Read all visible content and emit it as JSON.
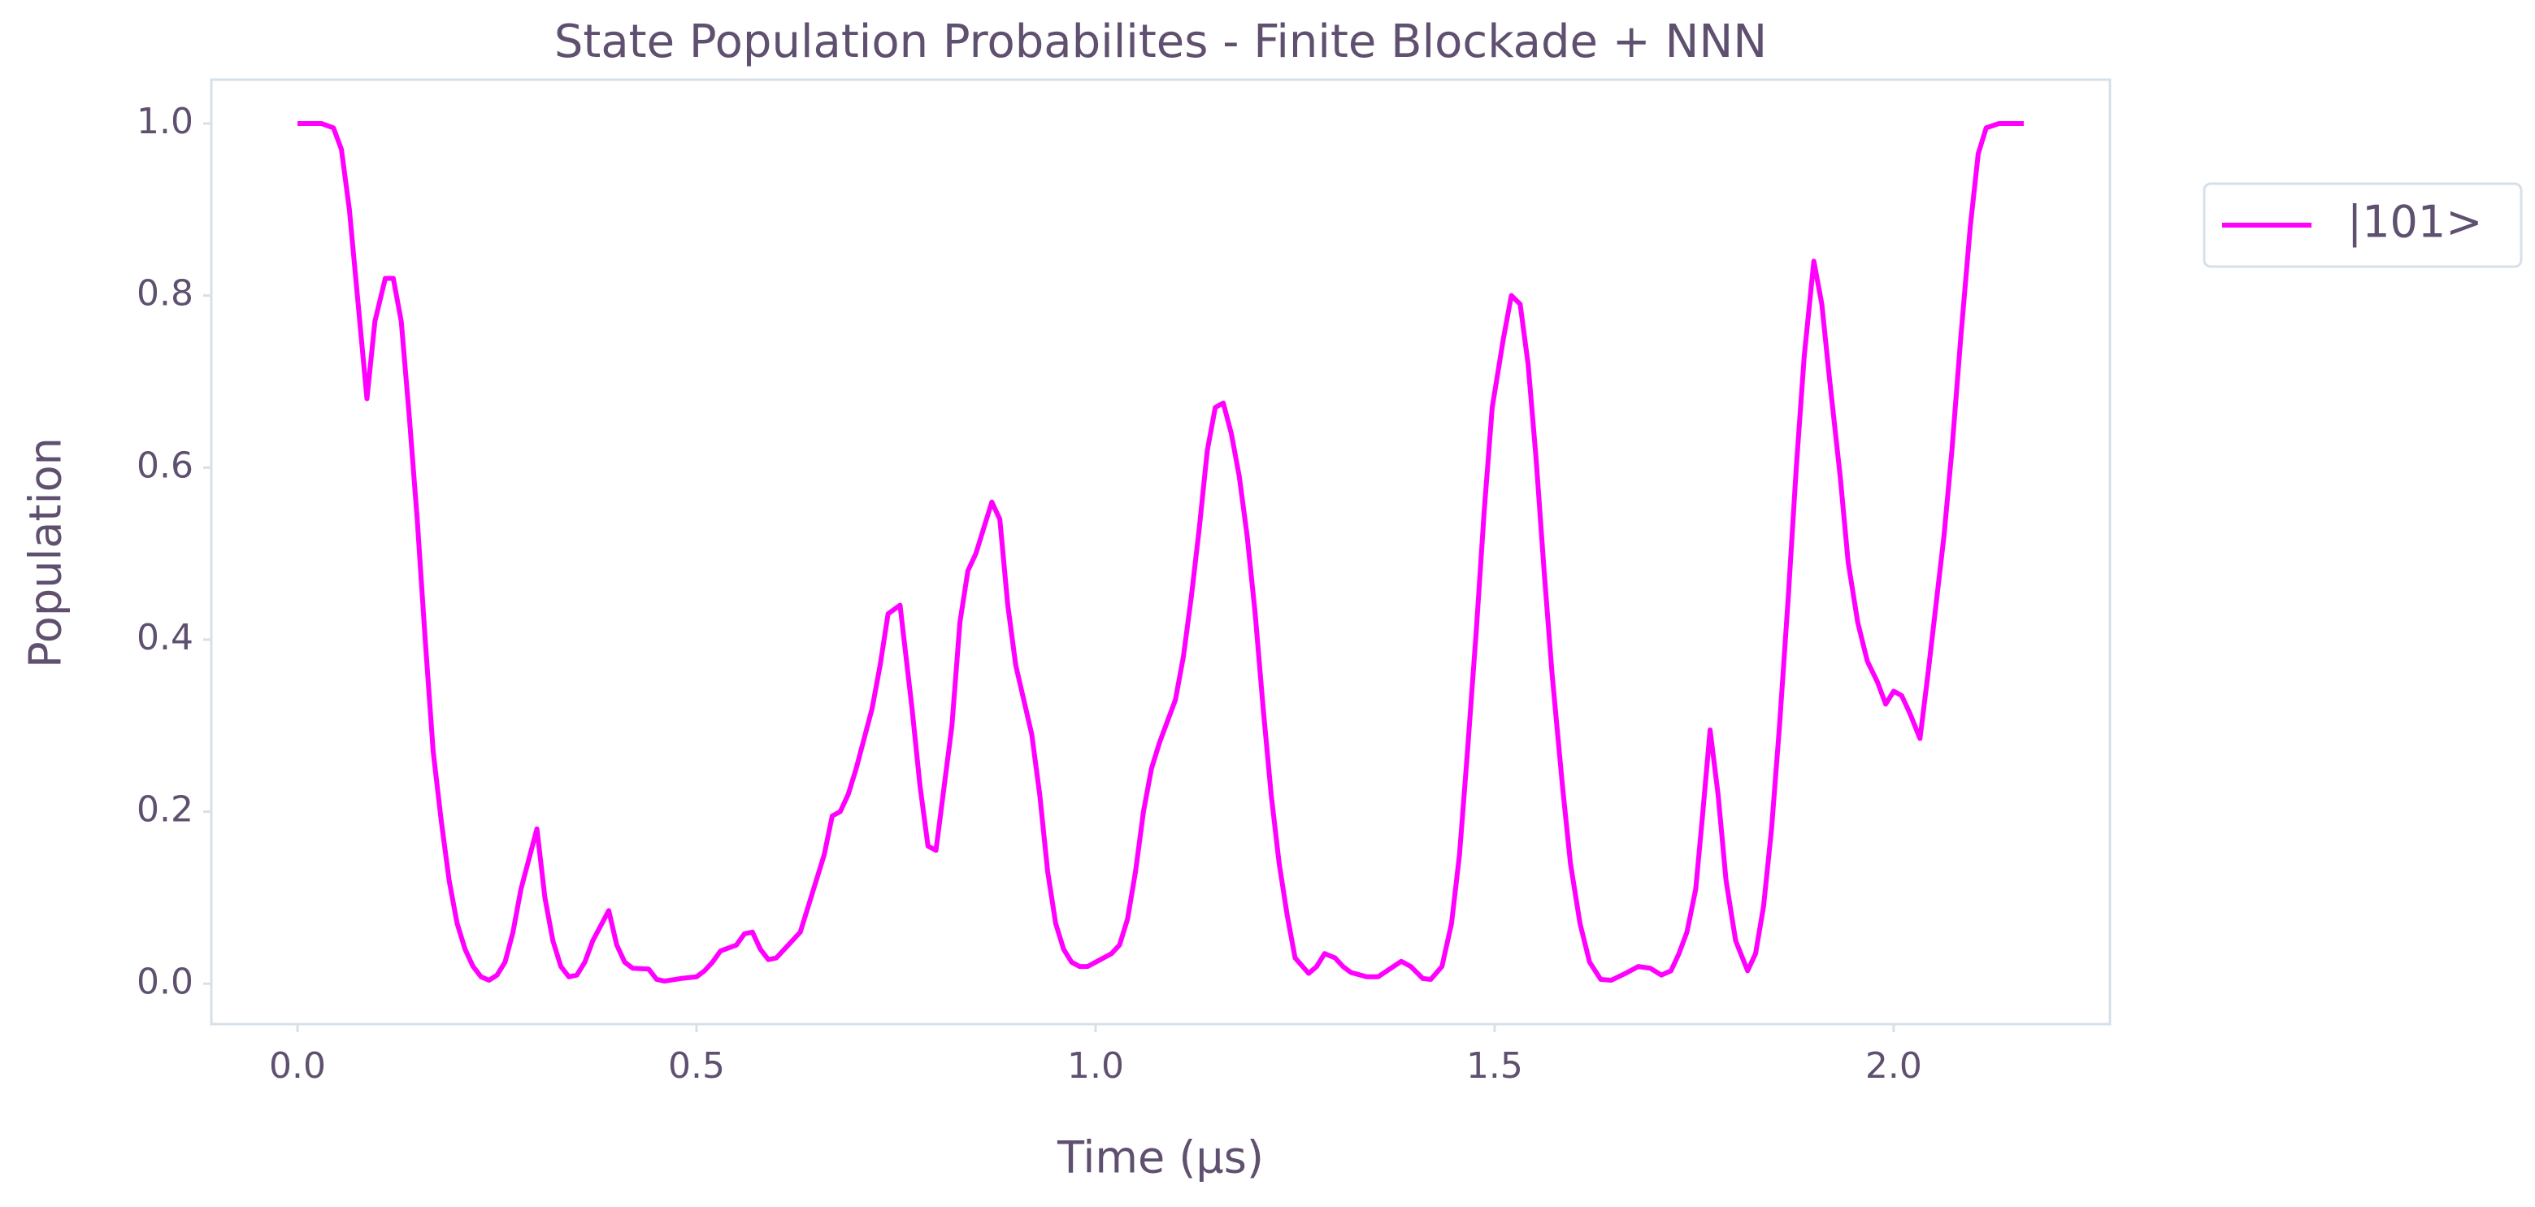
{
  "chart_data": {
    "type": "line",
    "title": "State Population Probabilites - Finite Blockade + NNN",
    "x_label": "Time (μs)",
    "y_label": "Population",
    "xlim": [
      -0.108,
      2.271
    ],
    "ylim": [
      -0.047,
      1.051
    ],
    "xticks": [
      {
        "value": 0,
        "label": "0.0"
      },
      {
        "value": 0.5,
        "label": "0.5"
      },
      {
        "value": 1,
        "label": "1.0"
      },
      {
        "value": 1.5,
        "label": "1.5"
      },
      {
        "value": 2,
        "label": "2.0"
      }
    ],
    "yticks": [
      {
        "value": 0,
        "label": "0.0"
      },
      {
        "value": 0.2,
        "label": "0.2"
      },
      {
        "value": 0.4,
        "label": "0.4"
      },
      {
        "value": 0.6,
        "label": "0.6"
      },
      {
        "value": 0.8,
        "label": "0.8"
      },
      {
        "value": 1,
        "label": "1.0"
      }
    ],
    "legend": "upper right outside",
    "x": [
      0,
      0.03,
      0.045,
      0.055,
      0.065,
      0.075,
      0.087,
      0.097,
      0.11,
      0.12,
      0.13,
      0.14,
      0.15,
      0.16,
      0.17,
      0.18,
      0.19,
      0.2,
      0.21,
      0.22,
      0.23,
      0.24,
      0.25,
      0.26,
      0.27,
      0.28,
      0.3,
      0.31,
      0.32,
      0.33,
      0.34,
      0.35,
      0.36,
      0.37,
      0.39,
      0.4,
      0.41,
      0.42,
      0.44,
      0.45,
      0.46,
      0.48,
      0.5,
      0.51,
      0.52,
      0.53,
      0.55,
      0.56,
      0.57,
      0.58,
      0.59,
      0.6,
      0.61,
      0.63,
      0.64,
      0.66,
      0.67,
      0.68,
      0.69,
      0.7,
      0.72,
      0.73,
      0.74,
      0.755,
      0.77,
      0.78,
      0.79,
      0.8,
      0.82,
      0.83,
      0.84,
      0.85,
      0.86,
      0.87,
      0.88,
      0.89,
      0.9,
      0.92,
      0.93,
      0.94,
      0.95,
      0.96,
      0.97,
      0.98,
      0.99,
      1.0,
      1.02,
      1.03,
      1.04,
      1.05,
      1.06,
      1.07,
      1.08,
      1.1,
      1.11,
      1.12,
      1.13,
      1.14,
      1.15,
      1.16,
      1.17,
      1.18,
      1.19,
      1.2,
      1.21,
      1.22,
      1.23,
      1.24,
      1.25,
      1.267,
      1.277,
      1.287,
      1.3,
      1.31,
      1.32,
      1.34,
      1.354,
      1.37,
      1.383,
      1.395,
      1.41,
      1.42,
      1.434,
      1.446,
      1.456,
      1.466,
      1.477,
      1.487,
      1.497,
      1.511,
      1.521,
      1.532,
      1.542,
      1.552,
      1.562,
      1.572,
      1.585,
      1.595,
      1.607,
      1.619,
      1.633,
      1.646,
      1.664,
      1.68,
      1.695,
      1.709,
      1.721,
      1.731,
      1.741,
      1.752,
      1.76,
      1.77,
      1.78,
      1.79,
      1.802,
      1.817,
      1.827,
      1.837,
      1.847,
      1.857,
      1.868,
      1.878,
      1.888,
      1.9,
      1.91,
      1.92,
      1.933,
      1.943,
      1.955,
      1.967,
      1.98,
      1.99,
      2.0,
      2.01,
      2.02,
      2.033,
      2.043,
      2.053,
      2.063,
      2.073,
      2.084,
      2.096,
      2.106,
      2.116,
      2.132,
      2.163
    ],
    "series": [
      {
        "name": "|101>",
        "color": "#ff00ff",
        "values": [
          1.0,
          1.0,
          0.995,
          0.97,
          0.9,
          0.8,
          0.68,
          0.77,
          0.82,
          0.82,
          0.77,
          0.66,
          0.54,
          0.4,
          0.27,
          0.19,
          0.12,
          0.07,
          0.04,
          0.02,
          0.008,
          0.004,
          0.01,
          0.025,
          0.06,
          0.11,
          0.18,
          0.1,
          0.05,
          0.02,
          0.008,
          0.01,
          0.025,
          0.05,
          0.085,
          0.045,
          0.025,
          0.018,
          0.017,
          0.005,
          0.003,
          0.006,
          0.008,
          0.015,
          0.025,
          0.038,
          0.045,
          0.058,
          0.06,
          0.04,
          0.028,
          0.03,
          0.04,
          0.06,
          0.09,
          0.15,
          0.195,
          0.2,
          0.22,
          0.25,
          0.32,
          0.37,
          0.43,
          0.44,
          0.32,
          0.23,
          0.16,
          0.155,
          0.3,
          0.42,
          0.48,
          0.5,
          0.53,
          0.56,
          0.54,
          0.44,
          0.37,
          0.29,
          0.22,
          0.13,
          0.07,
          0.04,
          0.025,
          0.02,
          0.02,
          0.025,
          0.035,
          0.045,
          0.075,
          0.13,
          0.2,
          0.25,
          0.28,
          0.33,
          0.38,
          0.45,
          0.53,
          0.62,
          0.67,
          0.675,
          0.64,
          0.59,
          0.52,
          0.43,
          0.32,
          0.22,
          0.14,
          0.08,
          0.03,
          0.012,
          0.02,
          0.035,
          0.03,
          0.02,
          0.013,
          0.008,
          0.008,
          0.018,
          0.026,
          0.02,
          0.006,
          0.005,
          0.02,
          0.07,
          0.15,
          0.27,
          0.41,
          0.55,
          0.67,
          0.75,
          0.8,
          0.79,
          0.72,
          0.61,
          0.48,
          0.36,
          0.23,
          0.14,
          0.07,
          0.025,
          0.005,
          0.004,
          0.012,
          0.02,
          0.018,
          0.01,
          0.015,
          0.035,
          0.06,
          0.11,
          0.19,
          0.295,
          0.22,
          0.12,
          0.05,
          0.015,
          0.035,
          0.09,
          0.18,
          0.3,
          0.45,
          0.6,
          0.73,
          0.84,
          0.79,
          0.7,
          0.59,
          0.49,
          0.42,
          0.375,
          0.35,
          0.325,
          0.34,
          0.335,
          0.315,
          0.285,
          0.36,
          0.44,
          0.52,
          0.62,
          0.75,
          0.88,
          0.965,
          0.995,
          1.0,
          1.0
        ]
      }
    ]
  }
}
